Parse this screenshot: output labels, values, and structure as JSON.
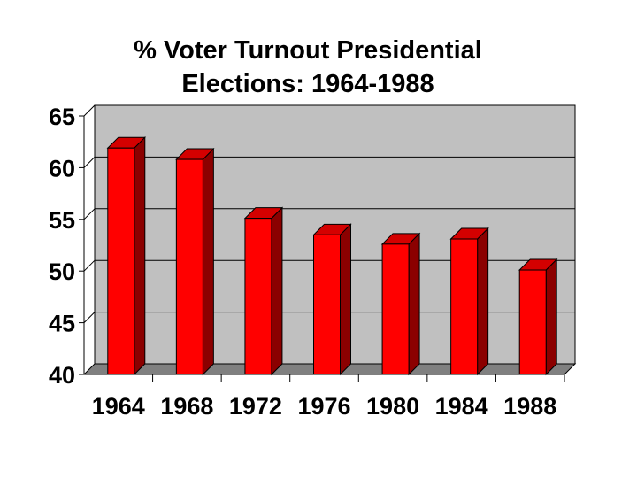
{
  "chart_data": {
    "type": "bar",
    "title_lines": [
      "% Voter Turnout Presidential",
      "Elections: 1964-1988"
    ],
    "categories": [
      "1964",
      "1968",
      "1972",
      "1976",
      "1980",
      "1984",
      "1988"
    ],
    "values": [
      61.9,
      60.8,
      55.1,
      53.5,
      52.6,
      53.1,
      50.1
    ],
    "ylim": [
      40,
      65
    ],
    "yticks": [
      "40",
      "45",
      "50",
      "55",
      "60",
      "65"
    ],
    "xlabel": "",
    "ylabel": "",
    "grid": true,
    "legend": "none",
    "colors": {
      "bar_front": "#ff0000",
      "bar_side": "#8b0000",
      "bar_top": "#d40000",
      "wall": "#c0c0c0",
      "floor": "#808080",
      "gridline": "#000000"
    }
  }
}
